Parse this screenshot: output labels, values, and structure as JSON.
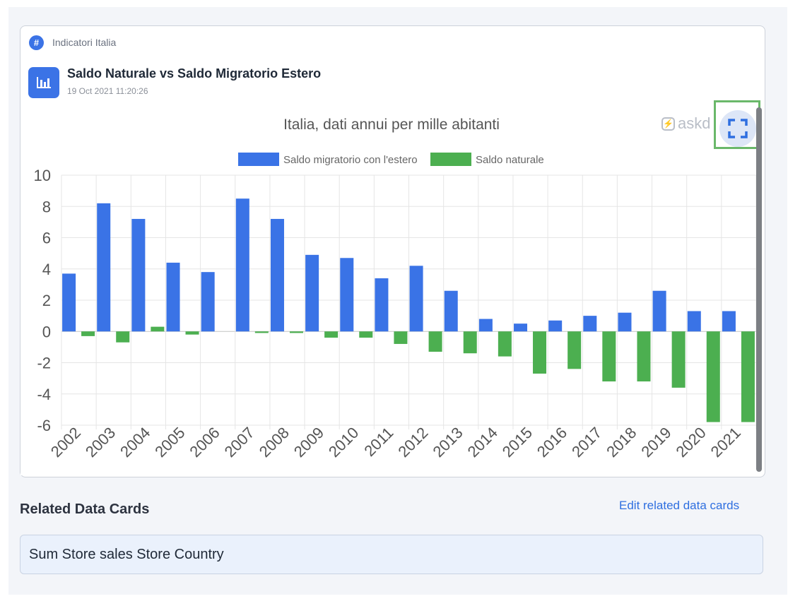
{
  "card": {
    "breadcrumb": "Indicatori Italia",
    "title": "Saldo Naturale vs Saldo Migratorio Estero",
    "date": "19 Oct 2021 11:20:26",
    "brand": "askd",
    "hash_symbol": "#",
    "expand_icon": "expand-icon",
    "chart_icon": "bar-chart-icon"
  },
  "related": {
    "title": "Related Data Cards",
    "edit_label": "Edit related data cards",
    "items": [
      "Sum Store sales Store Country"
    ]
  },
  "colors": {
    "accent": "#3b73e6",
    "migratory": "#3a73e6",
    "natural": "#4caf50",
    "link": "#2f6fe0"
  },
  "chart_data": {
    "type": "bar",
    "title": "Italia, dati annui per mille abitanti",
    "categories": [
      "2002",
      "2003",
      "2004",
      "2005",
      "2006",
      "2007",
      "2008",
      "2009",
      "2010",
      "2011",
      "2012",
      "2013",
      "2014",
      "2015",
      "2016",
      "2017",
      "2018",
      "2019",
      "2020",
      "2021"
    ],
    "series": [
      {
        "name": "Saldo migratorio con l'estero",
        "color": "#3a73e6",
        "values": [
          3.7,
          8.2,
          7.2,
          4.4,
          3.8,
          8.5,
          7.2,
          4.9,
          4.7,
          3.4,
          4.2,
          2.6,
          0.8,
          0.5,
          0.7,
          1.0,
          1.2,
          2.6,
          1.3,
          1.3
        ]
      },
      {
        "name": "Saldo naturale",
        "color": "#4caf50",
        "values": [
          -0.3,
          -0.7,
          0.3,
          -0.2,
          0.0,
          -0.1,
          -0.1,
          -0.4,
          -0.4,
          -0.8,
          -1.3,
          -1.4,
          -1.6,
          -2.7,
          -2.4,
          -3.2,
          -3.2,
          -3.6,
          -5.8,
          -5.8
        ]
      }
    ],
    "ylim": [
      -6,
      10
    ],
    "yticks": [
      10,
      8,
      6,
      4,
      2,
      0,
      -2,
      -4,
      -6
    ],
    "legend_position": "top-center",
    "grid": true
  }
}
